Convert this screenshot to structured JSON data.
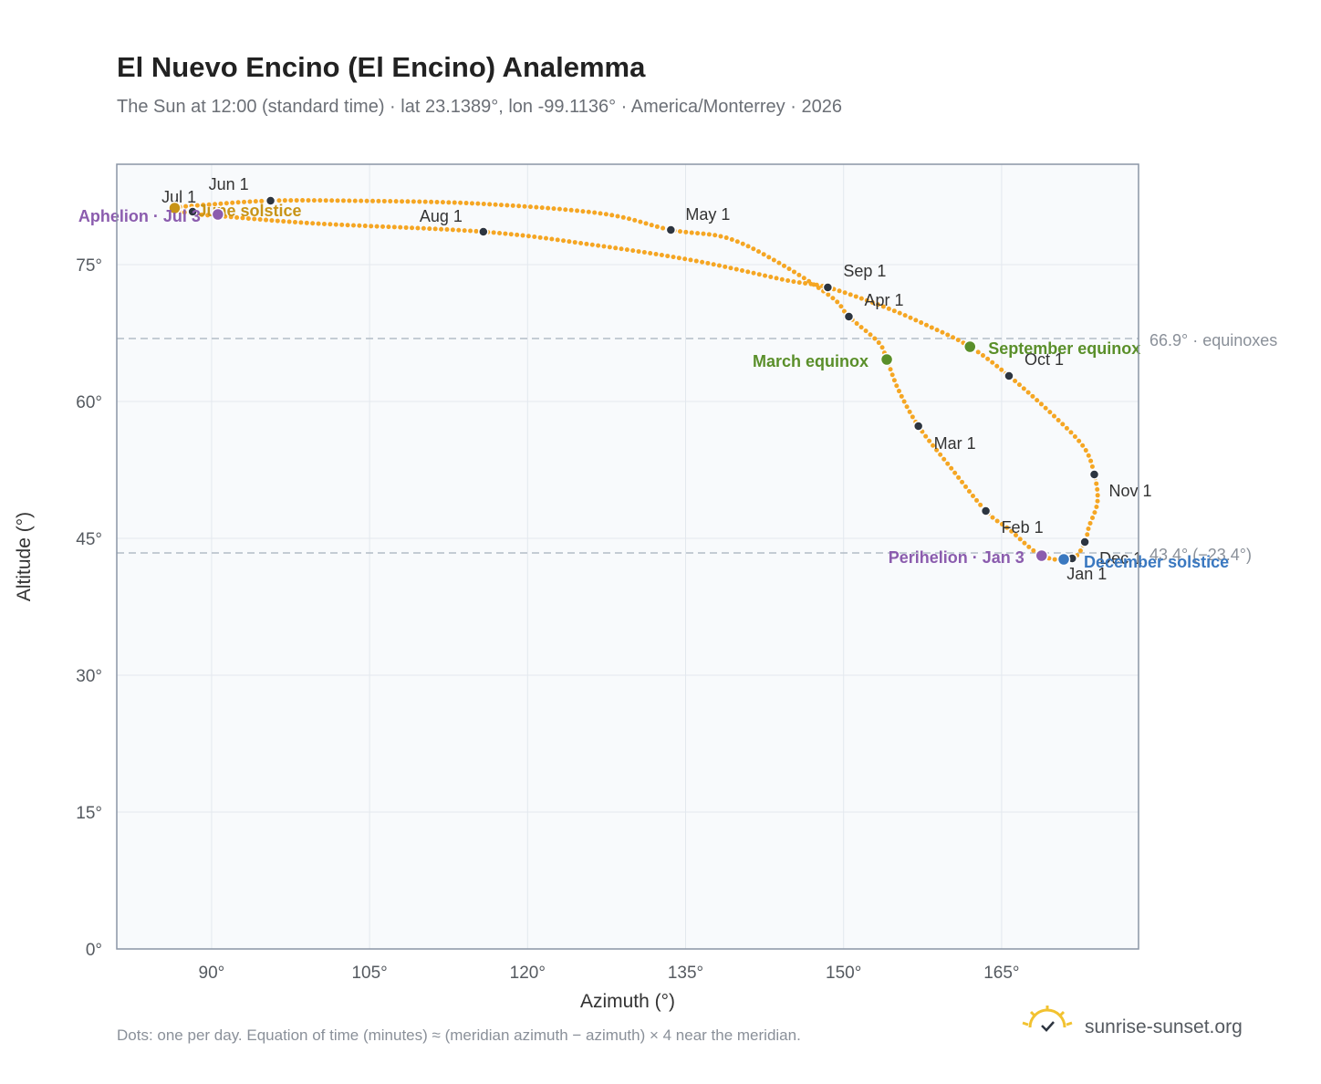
{
  "header": {
    "title": "El Nuevo Encino (El Encino) Analemma",
    "subtitle": "The Sun at 12:00 (standard time) · lat 23.1389°, lon -99.1136° · America/Monterrey · 2026"
  },
  "footer": {
    "note": "Dots: one per day. Equation of time (minutes) ≈ (meridian azimuth − azimuth) × 4 near the meridian.",
    "brand": "sunrise-sunset.org"
  },
  "colors": {
    "path": "#f5a623",
    "month_marker": "#2d3540",
    "equinox": "#5a8f2a",
    "solstice_june": "#c89417",
    "solstice_december": "#3a78c0",
    "apsis": "#8b5cae",
    "reference_line": "#b3bcc6",
    "plot_bg": "#f8fafc",
    "frame": "#8a95a5"
  },
  "chart_data": {
    "type": "scatter",
    "xlabel": "Azimuth (°)",
    "ylabel": "Altitude (°)",
    "xlim": [
      81,
      178
    ],
    "ylim": [
      0,
      86
    ],
    "xticks": [
      90,
      105,
      120,
      135,
      150,
      165
    ],
    "yticks": [
      0,
      15,
      30,
      45,
      60,
      75
    ],
    "xtick_labels": [
      "90°",
      "105°",
      "120°",
      "135°",
      "150°",
      "165°"
    ],
    "ytick_labels": [
      "0°",
      "15°",
      "30°",
      "45°",
      "60°",
      "75°"
    ],
    "grid": true,
    "legend": "none",
    "path_knots": [
      [
        171.7,
        42.8
      ],
      [
        168.8,
        43.1
      ],
      [
        165.7,
        46.0
      ],
      [
        163.5,
        48.0
      ],
      [
        160.0,
        53.0
      ],
      [
        157.1,
        57.3
      ],
      [
        155.2,
        61.3
      ],
      [
        154.1,
        64.6
      ],
      [
        153.3,
        66.5
      ],
      [
        150.5,
        69.3
      ],
      [
        148.9,
        71.4
      ],
      [
        144.0,
        75.1
      ],
      [
        139.0,
        77.9
      ],
      [
        133.6,
        78.8
      ],
      [
        127.0,
        80.6
      ],
      [
        115.0,
        81.7
      ],
      [
        103.0,
        82.0
      ],
      [
        95.6,
        82.0
      ],
      [
        90.0,
        81.6
      ],
      [
        86.5,
        81.2
      ],
      [
        88.0,
        80.6
      ],
      [
        91.0,
        80.3
      ],
      [
        100.0,
        79.5
      ],
      [
        115.8,
        78.6
      ],
      [
        126.0,
        77.2
      ],
      [
        136.0,
        75.4
      ],
      [
        144.5,
        73.3
      ],
      [
        148.5,
        72.5
      ],
      [
        154.0,
        70.3
      ],
      [
        158.0,
        68.3
      ],
      [
        162.0,
        66.0
      ],
      [
        165.7,
        62.8
      ],
      [
        169.8,
        58.6
      ],
      [
        172.8,
        55.0
      ],
      [
        173.8,
        52.0
      ],
      [
        174.1,
        49.0
      ],
      [
        173.3,
        46.3
      ],
      [
        172.9,
        44.6
      ]
    ],
    "month_markers": [
      {
        "label": "Jan 1",
        "az": 171.7,
        "alt": 42.8
      },
      {
        "label": "Feb 1",
        "az": 163.5,
        "alt": 48.0
      },
      {
        "label": "Mar 1",
        "az": 157.1,
        "alt": 57.3
      },
      {
        "label": "Apr 1",
        "az": 150.5,
        "alt": 69.3
      },
      {
        "label": "May 1",
        "az": 133.6,
        "alt": 78.8
      },
      {
        "label": "Jun 1",
        "az": 95.6,
        "alt": 82.0
      },
      {
        "label": "Jul 1",
        "az": 88.2,
        "alt": 80.8
      },
      {
        "label": "Aug 1",
        "az": 115.8,
        "alt": 78.6
      },
      {
        "label": "Sep 1",
        "az": 148.5,
        "alt": 72.5
      },
      {
        "label": "Oct 1",
        "az": 165.7,
        "alt": 62.8
      },
      {
        "label": "Nov 1",
        "az": 173.8,
        "alt": 52.0
      },
      {
        "label": "Dec 1",
        "az": 172.9,
        "alt": 44.6
      }
    ],
    "events": [
      {
        "label": "March equinox",
        "az": 154.1,
        "alt": 64.6,
        "kind": "equinox"
      },
      {
        "label": "September equinox",
        "az": 162.0,
        "alt": 66.0,
        "kind": "equinox"
      },
      {
        "label": "June solstice",
        "az": 86.5,
        "alt": 81.2,
        "kind": "solstice_june"
      },
      {
        "label": "December solstice",
        "az": 170.9,
        "alt": 42.7,
        "kind": "solstice_december"
      },
      {
        "label": "Aphelion · Jul 3",
        "az": 90.6,
        "alt": 80.5,
        "kind": "apsis"
      },
      {
        "label": "Perihelion · Jan 3",
        "az": 168.8,
        "alt": 43.1,
        "kind": "apsis"
      }
    ],
    "reference_lines": [
      {
        "alt": 66.9,
        "label": "66.9° · equinoxes"
      },
      {
        "alt": 43.4,
        "label": "43.4° (−23.4°)"
      }
    ]
  }
}
